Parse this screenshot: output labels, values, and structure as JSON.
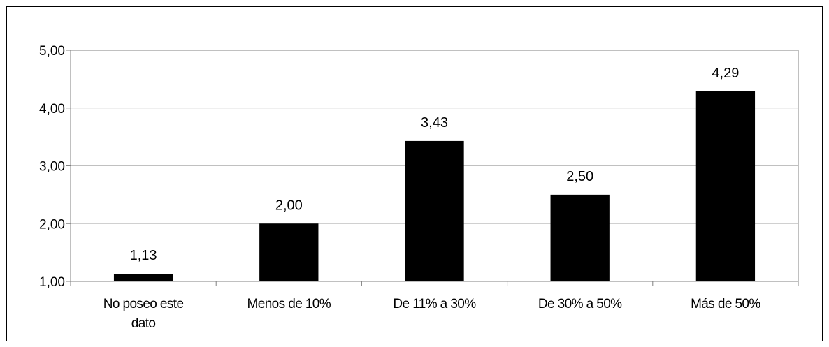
{
  "chart_data": {
    "type": "bar",
    "title": "",
    "xlabel": "",
    "ylabel": "",
    "categories": [
      [
        "No poseo este",
        "dato"
      ],
      [
        "Menos de 10%"
      ],
      [
        "De 11% a 30%"
      ],
      [
        "De 30% a 50%"
      ],
      [
        "Más de 50%"
      ]
    ],
    "values": [
      1.13,
      2.0,
      3.43,
      2.5,
      4.29
    ],
    "data_labels": [
      "1,13",
      "2,00",
      "3,43",
      "2,50",
      "4,29"
    ],
    "ylim": [
      1,
      5
    ],
    "yticks": [
      1,
      2,
      3,
      4,
      5
    ],
    "ytick_labels": [
      "1,00",
      "2,00",
      "3,00",
      "4,00",
      "5,00"
    ],
    "grid": true,
    "legend": false,
    "colors": {
      "bar": "#000000",
      "grid": "#c0c0c0",
      "axis": "#808080",
      "frame": "#000000"
    }
  }
}
